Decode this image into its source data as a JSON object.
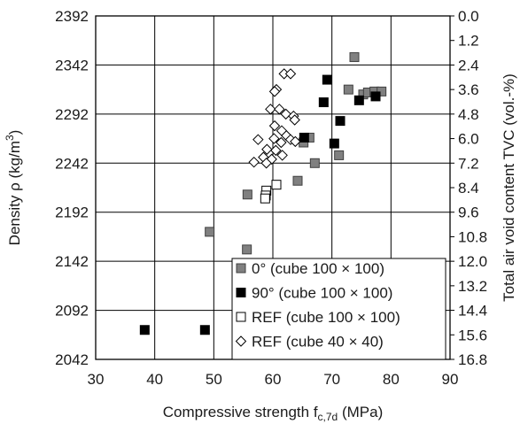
{
  "chart_data": {
    "type": "scatter",
    "title": "",
    "xlabel": "Compressive strength f",
    "xlabel_sub": "c,7d",
    "xlabel_unit": " (MPa)",
    "ylabel": "Density ρ (kg/m",
    "ylabel_sup": "3",
    "ylabel_tail": ")",
    "y2label": "Total air void content TVC (vol.-%)",
    "xlim": [
      30,
      90
    ],
    "ylim": [
      2042,
      2392
    ],
    "y2lim": [
      16.8,
      0.0
    ],
    "x_ticks": [
      "30",
      "40",
      "50",
      "60",
      "70",
      "80",
      "90"
    ],
    "y_ticks": [
      "2392",
      "2342",
      "2292",
      "2242",
      "2192",
      "2142",
      "2092",
      "2042"
    ],
    "y2_ticks": [
      "0.0",
      "1.2",
      "2.4",
      "3.6",
      "4.8",
      "6.0",
      "7.2",
      "8.4",
      "9.6",
      "10.8",
      "12.0",
      "13.2",
      "14.4",
      "15.6",
      "16.8"
    ],
    "grid": true,
    "legend_position": "bottom-right",
    "series": [
      {
        "name": "0°  (cube 100 × 100)",
        "marker": "square",
        "fill": "#808080",
        "stroke": "#404040",
        "points": [
          [
            73.8,
            2350
          ],
          [
            72.8,
            2317
          ],
          [
            75.3,
            2312
          ],
          [
            76.1,
            2314
          ],
          [
            77.2,
            2315
          ],
          [
            78.4,
            2315
          ],
          [
            66.2,
            2268
          ],
          [
            65.2,
            2263
          ],
          [
            71.2,
            2250
          ],
          [
            67.1,
            2242
          ],
          [
            64.2,
            2224
          ],
          [
            55.7,
            2210
          ],
          [
            49.3,
            2172
          ],
          [
            55.6,
            2154
          ]
        ]
      },
      {
        "name": "90°  (cube 100 × 100)",
        "marker": "square",
        "fill": "#000000",
        "stroke": "#000000",
        "points": [
          [
            69.2,
            2327
          ],
          [
            68.6,
            2304
          ],
          [
            74.6,
            2306
          ],
          [
            77.4,
            2310
          ],
          [
            71.4,
            2285
          ],
          [
            65.3,
            2268
          ],
          [
            70.4,
            2262
          ],
          [
            38.3,
            2072
          ],
          [
            48.5,
            2072
          ]
        ]
      },
      {
        "name": "REF (cube 100 × 100)",
        "marker": "square",
        "fill": "#ffffff",
        "stroke": "#000000",
        "points": [
          [
            60.6,
            2220
          ],
          [
            58.9,
            2214
          ],
          [
            58.8,
            2209
          ],
          [
            58.7,
            2206
          ]
        ]
      },
      {
        "name": "REF (cube 40 × 40)",
        "marker": "diamond",
        "fill": "#ffffff",
        "stroke": "#000000",
        "points": [
          [
            61.9,
            2333
          ],
          [
            63.0,
            2333
          ],
          [
            60.6,
            2317
          ],
          [
            60.3,
            2315
          ],
          [
            59.6,
            2297
          ],
          [
            61.1,
            2297
          ],
          [
            62.2,
            2292
          ],
          [
            63.5,
            2290
          ],
          [
            63.7,
            2286
          ],
          [
            60.3,
            2280
          ],
          [
            61.5,
            2275
          ],
          [
            62.3,
            2270
          ],
          [
            57.5,
            2266
          ],
          [
            60.2,
            2267
          ],
          [
            61.4,
            2263
          ],
          [
            63.0,
            2266
          ],
          [
            63.8,
            2264
          ],
          [
            59.0,
            2256
          ],
          [
            60.5,
            2255
          ],
          [
            61.6,
            2250
          ],
          [
            58.4,
            2248
          ],
          [
            59.8,
            2246
          ],
          [
            56.8,
            2243
          ],
          [
            58.9,
            2242
          ]
        ]
      }
    ]
  }
}
